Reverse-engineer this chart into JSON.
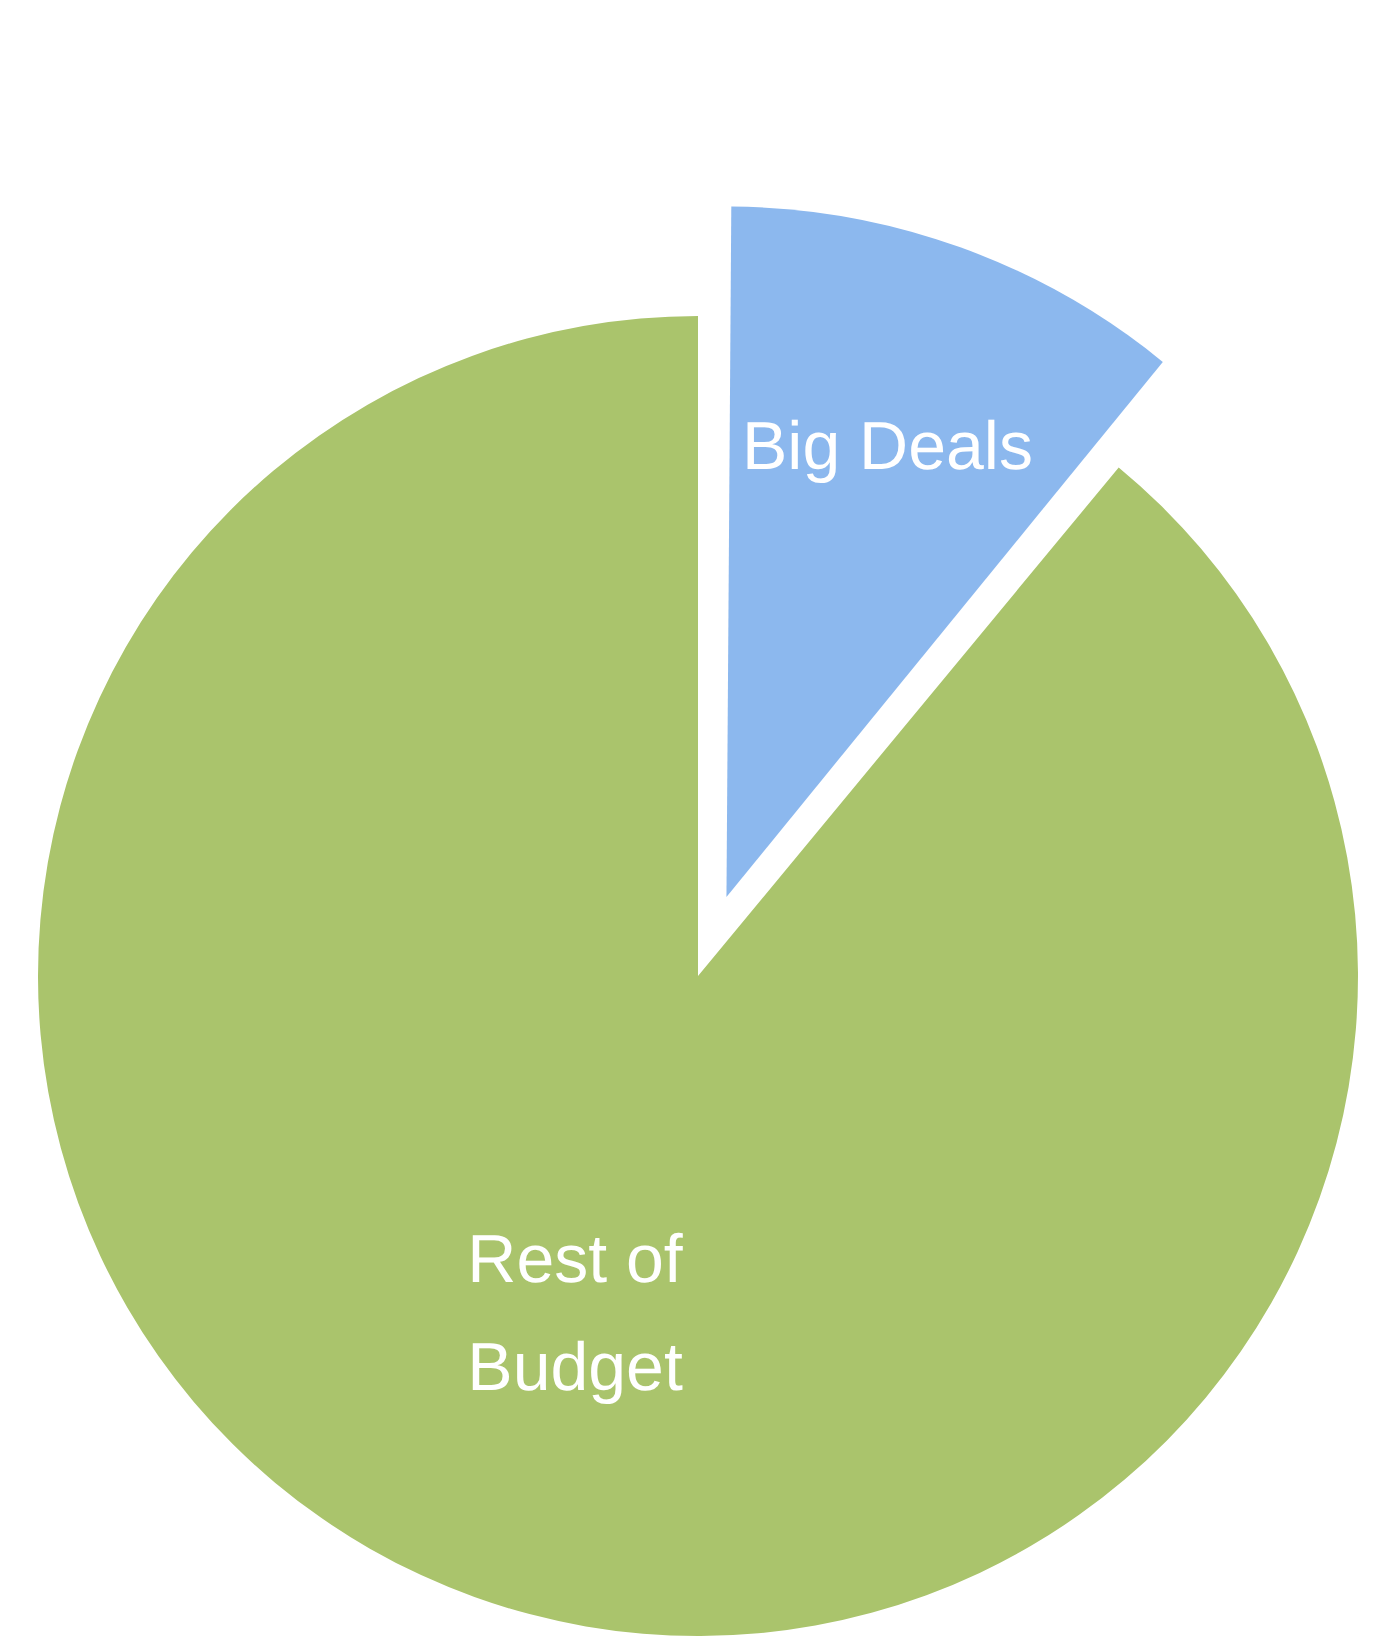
{
  "chart_data": {
    "type": "pie",
    "categories": [
      "Big Deals",
      "Rest of Budget"
    ],
    "values": [
      11,
      89
    ],
    "colors": [
      "#8cb8ee",
      "#aac46c"
    ]
  }
}
